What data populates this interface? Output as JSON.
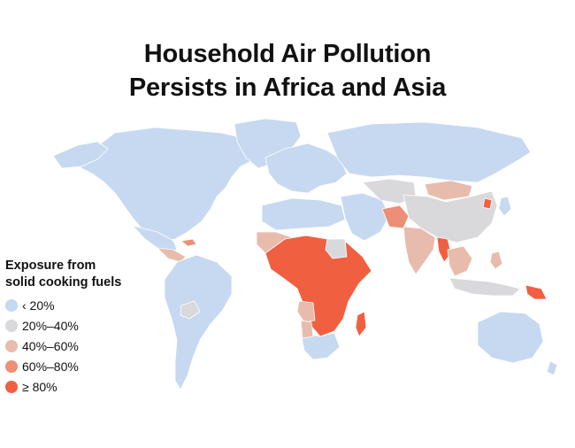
{
  "title": {
    "line1": "Household Air Pollution",
    "line2": "Persists in Africa and Asia"
  },
  "legend": {
    "title_line1": "Exposure from",
    "title_line2": "solid cooking fuels",
    "items": [
      {
        "label": "‹ 20%",
        "color": "#c6d9f1"
      },
      {
        "label": "20%–40%",
        "color": "#d9d9dc"
      },
      {
        "label": "40%–60%",
        "color": "#e8bcad"
      },
      {
        "label": "60%–80%",
        "color": "#ec8f76"
      },
      {
        "label": "≥ 80%",
        "color": "#f06040"
      }
    ]
  },
  "colors": {
    "lt20": "#c6d9f1",
    "c20_40": "#d9d9dc",
    "c40_60": "#e8bcad",
    "c60_80": "#ec8f76",
    "ge80": "#f06040",
    "border": "#ffffff"
  }
}
